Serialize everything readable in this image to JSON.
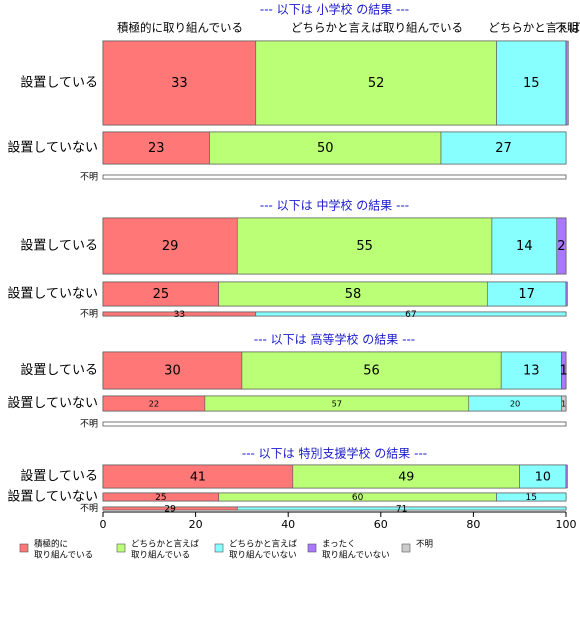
{
  "chart_data": {
    "type": "bar",
    "orientation": "horizontal",
    "stacked": true,
    "xlim": [
      0,
      100
    ],
    "x_ticks": [
      "0",
      "20",
      "40",
      "60",
      "80",
      "100"
    ],
    "categories": [
      "積極的に取り組んでいる",
      "どちらかと言えば取り組んでいる",
      "どちらかと言えば取り組んでいない",
      "まったく取り組んでいない",
      "不明"
    ],
    "top_labels": [
      "積極的に取り組んでいる",
      "どちらかと言えば取り組んでいる",
      "どちらかと言えば取",
      "不明"
    ],
    "colors": [
      "#ff7777",
      "#bbff77",
      "#88ffff",
      "#aa77ff",
      "#cccccc"
    ],
    "legend": {
      "placement": "bottom",
      "items": [
        {
          "line1": "積極的に",
          "line2": "取り組んでいる",
          "color": "#ff7777"
        },
        {
          "line1": "どちらかと言えば",
          "line2": "取り組んでいる",
          "color": "#bbff77"
        },
        {
          "line1": "どちらかと言えば",
          "line2": "取り組んでいない",
          "color": "#88ffff"
        },
        {
          "line1": "まったく",
          "line2": "取り組んでいない",
          "color": "#aa77ff"
        },
        {
          "line1": "不明",
          "line2": "",
          "color": "#cccccc"
        }
      ]
    },
    "panels": [
      {
        "title": "--- 以下は 小学校 の結果 ---",
        "rows": [
          {
            "label": "設置している",
            "values": [
              33,
              52,
              15,
              0.5,
              0
            ],
            "value_labels": [
              "33",
              "52",
              "15",
              "",
              ""
            ]
          },
          {
            "label": "設置していない",
            "values": [
              23,
              50,
              27,
              0,
              0
            ],
            "value_labels": [
              "23",
              "50",
              "27",
              "",
              ""
            ]
          },
          {
            "label": "不明",
            "values": [
              0,
              0,
              0,
              0,
              0
            ],
            "value_labels": [
              "",
              "",
              "",
              "",
              ""
            ]
          }
        ]
      },
      {
        "title": "--- 以下は 中学校 の結果 ---",
        "rows": [
          {
            "label": "設置している",
            "values": [
              29,
              55,
              14,
              2,
              0
            ],
            "value_labels": [
              "29",
              "55",
              "14",
              "2",
              ""
            ]
          },
          {
            "label": "設置していない",
            "values": [
              25,
              58,
              17,
              0.3,
              0
            ],
            "value_labels": [
              "25",
              "58",
              "17",
              "",
              ""
            ]
          },
          {
            "label": "不明",
            "values": [
              33,
              0,
              67,
              0,
              0
            ],
            "value_labels": [
              "33",
              "",
              "67",
              "",
              ""
            ]
          }
        ]
      },
      {
        "title": "--- 以下は 高等学校 の結果 ---",
        "rows": [
          {
            "label": "設置している",
            "values": [
              30,
              56,
              13,
              1,
              0
            ],
            "value_labels": [
              "30",
              "56",
              "13",
              "1",
              ""
            ]
          },
          {
            "label": "設置していない",
            "values": [
              22,
              57,
              20,
              0,
              1
            ],
            "value_labels": [
              "22",
              "57",
              "20",
              "",
              "1"
            ]
          },
          {
            "label": "不明",
            "values": [
              0,
              0,
              0,
              0,
              0
            ],
            "value_labels": [
              "",
              "",
              "",
              "",
              ""
            ]
          }
        ]
      },
      {
        "title": "--- 以下は 特別支援学校 の結果 ---",
        "rows": [
          {
            "label": "設置している",
            "values": [
              41,
              49,
              10,
              0.3,
              0
            ],
            "value_labels": [
              "41",
              "49",
              "10",
              "",
              ""
            ]
          },
          {
            "label": "設置していない",
            "values": [
              25,
              60,
              15,
              0,
              0
            ],
            "value_labels": [
              "25",
              "60",
              "15",
              "",
              ""
            ]
          },
          {
            "label": "不明",
            "values": [
              29,
              0,
              71,
              0,
              0
            ],
            "value_labels": [
              "29",
              "",
              "71",
              "",
              ""
            ]
          }
        ]
      }
    ]
  }
}
